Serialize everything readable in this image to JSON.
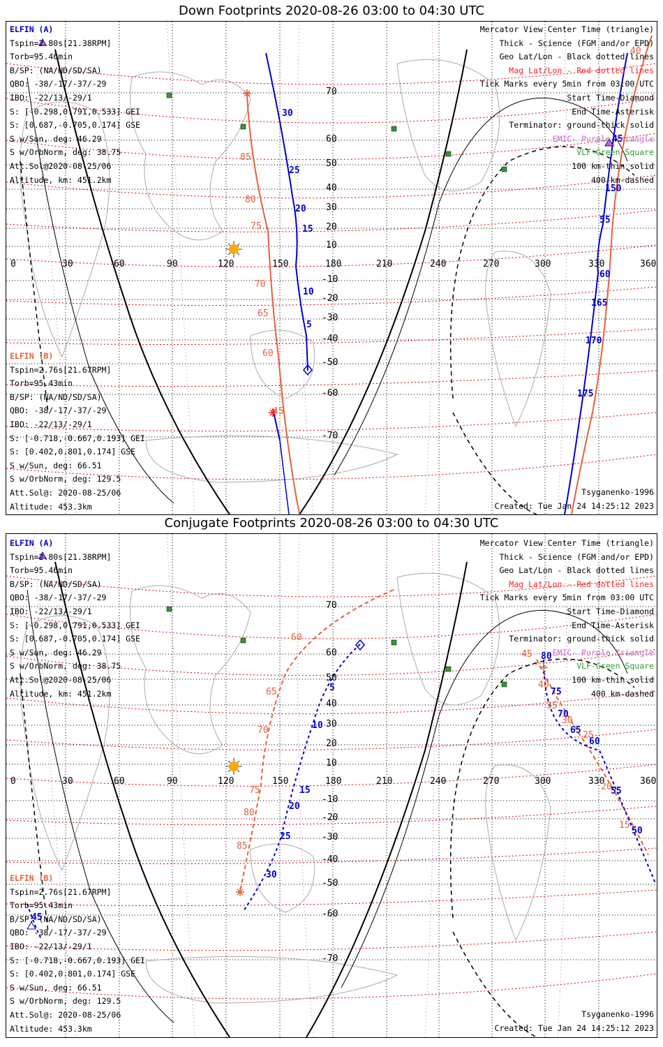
{
  "titles": {
    "down": "Down Footprints 2020-08-26 03:00 to 04:30 UTC",
    "conjugate": "Conjugate Footprints 2020-08-26 03:00 to 04:30 UTC"
  },
  "elfin_a": {
    "name": "ELFIN (A)",
    "tspin": "Tspin=2.80s[21.38RPM]",
    "torb": "Torb=95.46min",
    "bsp": "B/SP: (NA/ND/SD/SA)",
    "qbo": "QBO: -38/-17/-37/-29",
    "ibo": "IBO: -22/13/-29/1",
    "s_gei": "S: [-0.298,0.791,0.533] GEI",
    "s_gse": "S: [0.687,-0.705,0.174] GSE",
    "s_sun": "S w/Sun, deg: 46.29",
    "s_orbnorm": "S w/OrbNorm, deg: 38.75",
    "attsol": "Att.Sol@2020-08-25/06",
    "altitude": "Altitude, km: 451.2km"
  },
  "elfin_b": {
    "name": "ELFIN (B)",
    "tspin": "Tspin=2.76s[21.67RPM]",
    "torb": "Torb=95.43min",
    "bsp": "B/SP: (NA/ND/SD/SA)",
    "qbo": "QBO: -38/-17/-37/-29",
    "ibo": "IBO: -22/13/-29/1",
    "s_gei": "S: [-0.718,-0.667,0.193] GEI",
    "s_gse": "S: [0.402,0.801,0.174] GSE",
    "s_sun": "S w/Sun, deg: 66.51",
    "s_orbnorm": "S w/OrbNorm, deg: 129.5",
    "attsol": "Att.Sol@: 2020-08-25/06",
    "altitude": "Altitude: 453.3km"
  },
  "legend": {
    "l1": "Mercator View Center Time (triangle)",
    "l2": "Thick - Science (FGM and/or EPD)",
    "l3": "Geo Lat/Lon - Black dotted lines",
    "l4": "Mag Lat/Lon - Red dotted lines",
    "l5": "Tick Marks every 5min from 03:00 UTC",
    "l6": "Start Time-Diamond",
    "l7": "End Time-Asterisk",
    "l8": "Terminator: ground-thick solid",
    "l9": "EMIC- Purple Triangle",
    "l10": "VLF-Green Square",
    "l11": "100 km-thin solid",
    "l12": "400 km-dashed"
  },
  "footer": {
    "model": "Tsyganenko-1996",
    "created": "Created: Tue Jan 24 14:25:12 2023"
  },
  "axes": {
    "lon_ticks": [
      "0",
      "30",
      "60",
      "90",
      "120",
      "150",
      "180",
      "210",
      "240",
      "270",
      "300",
      "330",
      "360"
    ],
    "lat_ticks": [
      "70",
      "60",
      "50",
      "40",
      "30",
      "20",
      "10",
      "-10",
      "-20",
      "-30",
      "-40",
      "-50",
      "-60",
      "-70"
    ]
  },
  "track_labels_down": {
    "a1": [
      "30",
      "25",
      "20",
      "15",
      "10",
      "5"
    ],
    "b1": [
      "85",
      "80",
      "75",
      "70",
      "65",
      "60",
      "45"
    ],
    "a2": [
      "45",
      "150",
      "55",
      "60",
      "165",
      "170",
      "175"
    ],
    "b2": [
      "40"
    ]
  },
  "track_labels_conj": {
    "a1": [
      "5",
      "10",
      "15",
      "20",
      "25",
      "30"
    ],
    "b1": [
      "60",
      "65",
      "70",
      "75",
      "80",
      "85"
    ],
    "a2": [
      "80",
      "75",
      "70",
      "65",
      "60",
      "55",
      "50",
      "45"
    ],
    "b2": [
      "45",
      "40",
      "35",
      "30",
      "25",
      "20",
      "15"
    ]
  },
  "colors": {
    "elfin_a": "#0000cc",
    "elfin_b": "#e8603c",
    "mag_grid": "#dd0000",
    "emic": "#cc66cc",
    "vlf": "#339933"
  }
}
